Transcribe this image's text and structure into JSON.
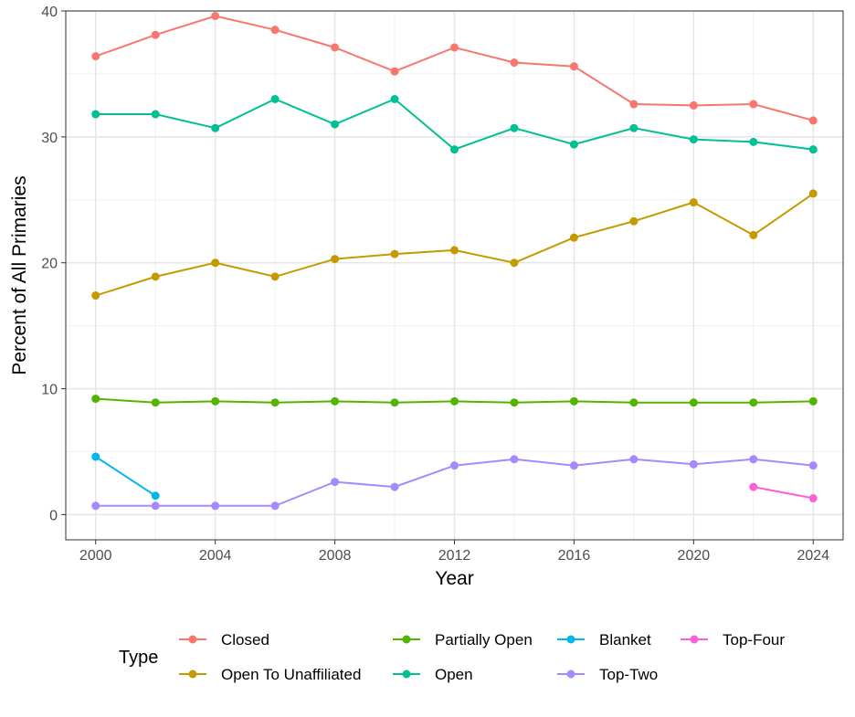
{
  "chart_data": {
    "type": "line",
    "title": "",
    "xlabel": "Year",
    "ylabel": "Percent of All Primaries",
    "xlim": [
      1999,
      2025
    ],
    "ylim": [
      -2,
      40
    ],
    "x_ticks": [
      2000,
      2004,
      2008,
      2012,
      2016,
      2020,
      2024
    ],
    "y_ticks": [
      0,
      10,
      20,
      30,
      40
    ],
    "grid": true,
    "legend": {
      "title": "Type",
      "placement": "bottom",
      "columns": [
        [
          "Closed",
          "Open To Unaffiliated"
        ],
        [
          "Partially Open",
          "Open"
        ],
        [
          "Blanket",
          "Top-Two"
        ],
        [
          "Top-Four"
        ]
      ]
    },
    "series": [
      {
        "name": "Closed",
        "color": "#F8766D",
        "x": [
          2000,
          2002,
          2004,
          2006,
          2008,
          2010,
          2012,
          2014,
          2016,
          2018,
          2020,
          2022,
          2024
        ],
        "y": [
          36.4,
          38.1,
          39.6,
          38.5,
          37.1,
          35.2,
          37.1,
          35.9,
          35.6,
          32.6,
          32.5,
          32.6,
          31.3
        ]
      },
      {
        "name": "Open To Unaffiliated",
        "color": "#C49A00",
        "x": [
          2000,
          2002,
          2004,
          2006,
          2008,
          2010,
          2012,
          2014,
          2016,
          2018,
          2020,
          2022,
          2024
        ],
        "y": [
          17.4,
          18.9,
          20.0,
          18.9,
          20.3,
          20.7,
          21.0,
          20.0,
          22.0,
          23.3,
          24.8,
          22.2,
          25.5
        ]
      },
      {
        "name": "Partially Open",
        "color": "#53B400",
        "x": [
          2000,
          2002,
          2004,
          2006,
          2008,
          2010,
          2012,
          2014,
          2016,
          2018,
          2020,
          2022,
          2024
        ],
        "y": [
          9.2,
          8.9,
          9.0,
          8.9,
          9.0,
          8.9,
          9.0,
          8.9,
          9.0,
          8.9,
          8.9,
          8.9,
          9.0
        ]
      },
      {
        "name": "Open",
        "color": "#00C094",
        "x": [
          2000,
          2002,
          2004,
          2006,
          2008,
          2010,
          2012,
          2014,
          2016,
          2018,
          2020,
          2022,
          2024
        ],
        "y": [
          31.8,
          31.8,
          30.7,
          33.0,
          31.0,
          33.0,
          29.0,
          30.7,
          29.4,
          30.7,
          29.8,
          29.6,
          29.0
        ]
      },
      {
        "name": "Blanket",
        "color": "#00B6EB",
        "x": [
          2000,
          2002
        ],
        "y": [
          4.6,
          1.5
        ]
      },
      {
        "name": "Top-Two",
        "color": "#A58AFF",
        "x": [
          2000,
          2002,
          2004,
          2006,
          2008,
          2010,
          2012,
          2014,
          2016,
          2018,
          2020,
          2022,
          2024
        ],
        "y": [
          0.7,
          0.7,
          0.7,
          0.7,
          2.6,
          2.2,
          3.9,
          4.4,
          3.9,
          4.4,
          4.0,
          4.4,
          3.9
        ]
      },
      {
        "name": "Top-Four",
        "color": "#FB61D7",
        "x": [
          2022,
          2024
        ],
        "y": [
          2.2,
          1.3
        ]
      }
    ]
  }
}
